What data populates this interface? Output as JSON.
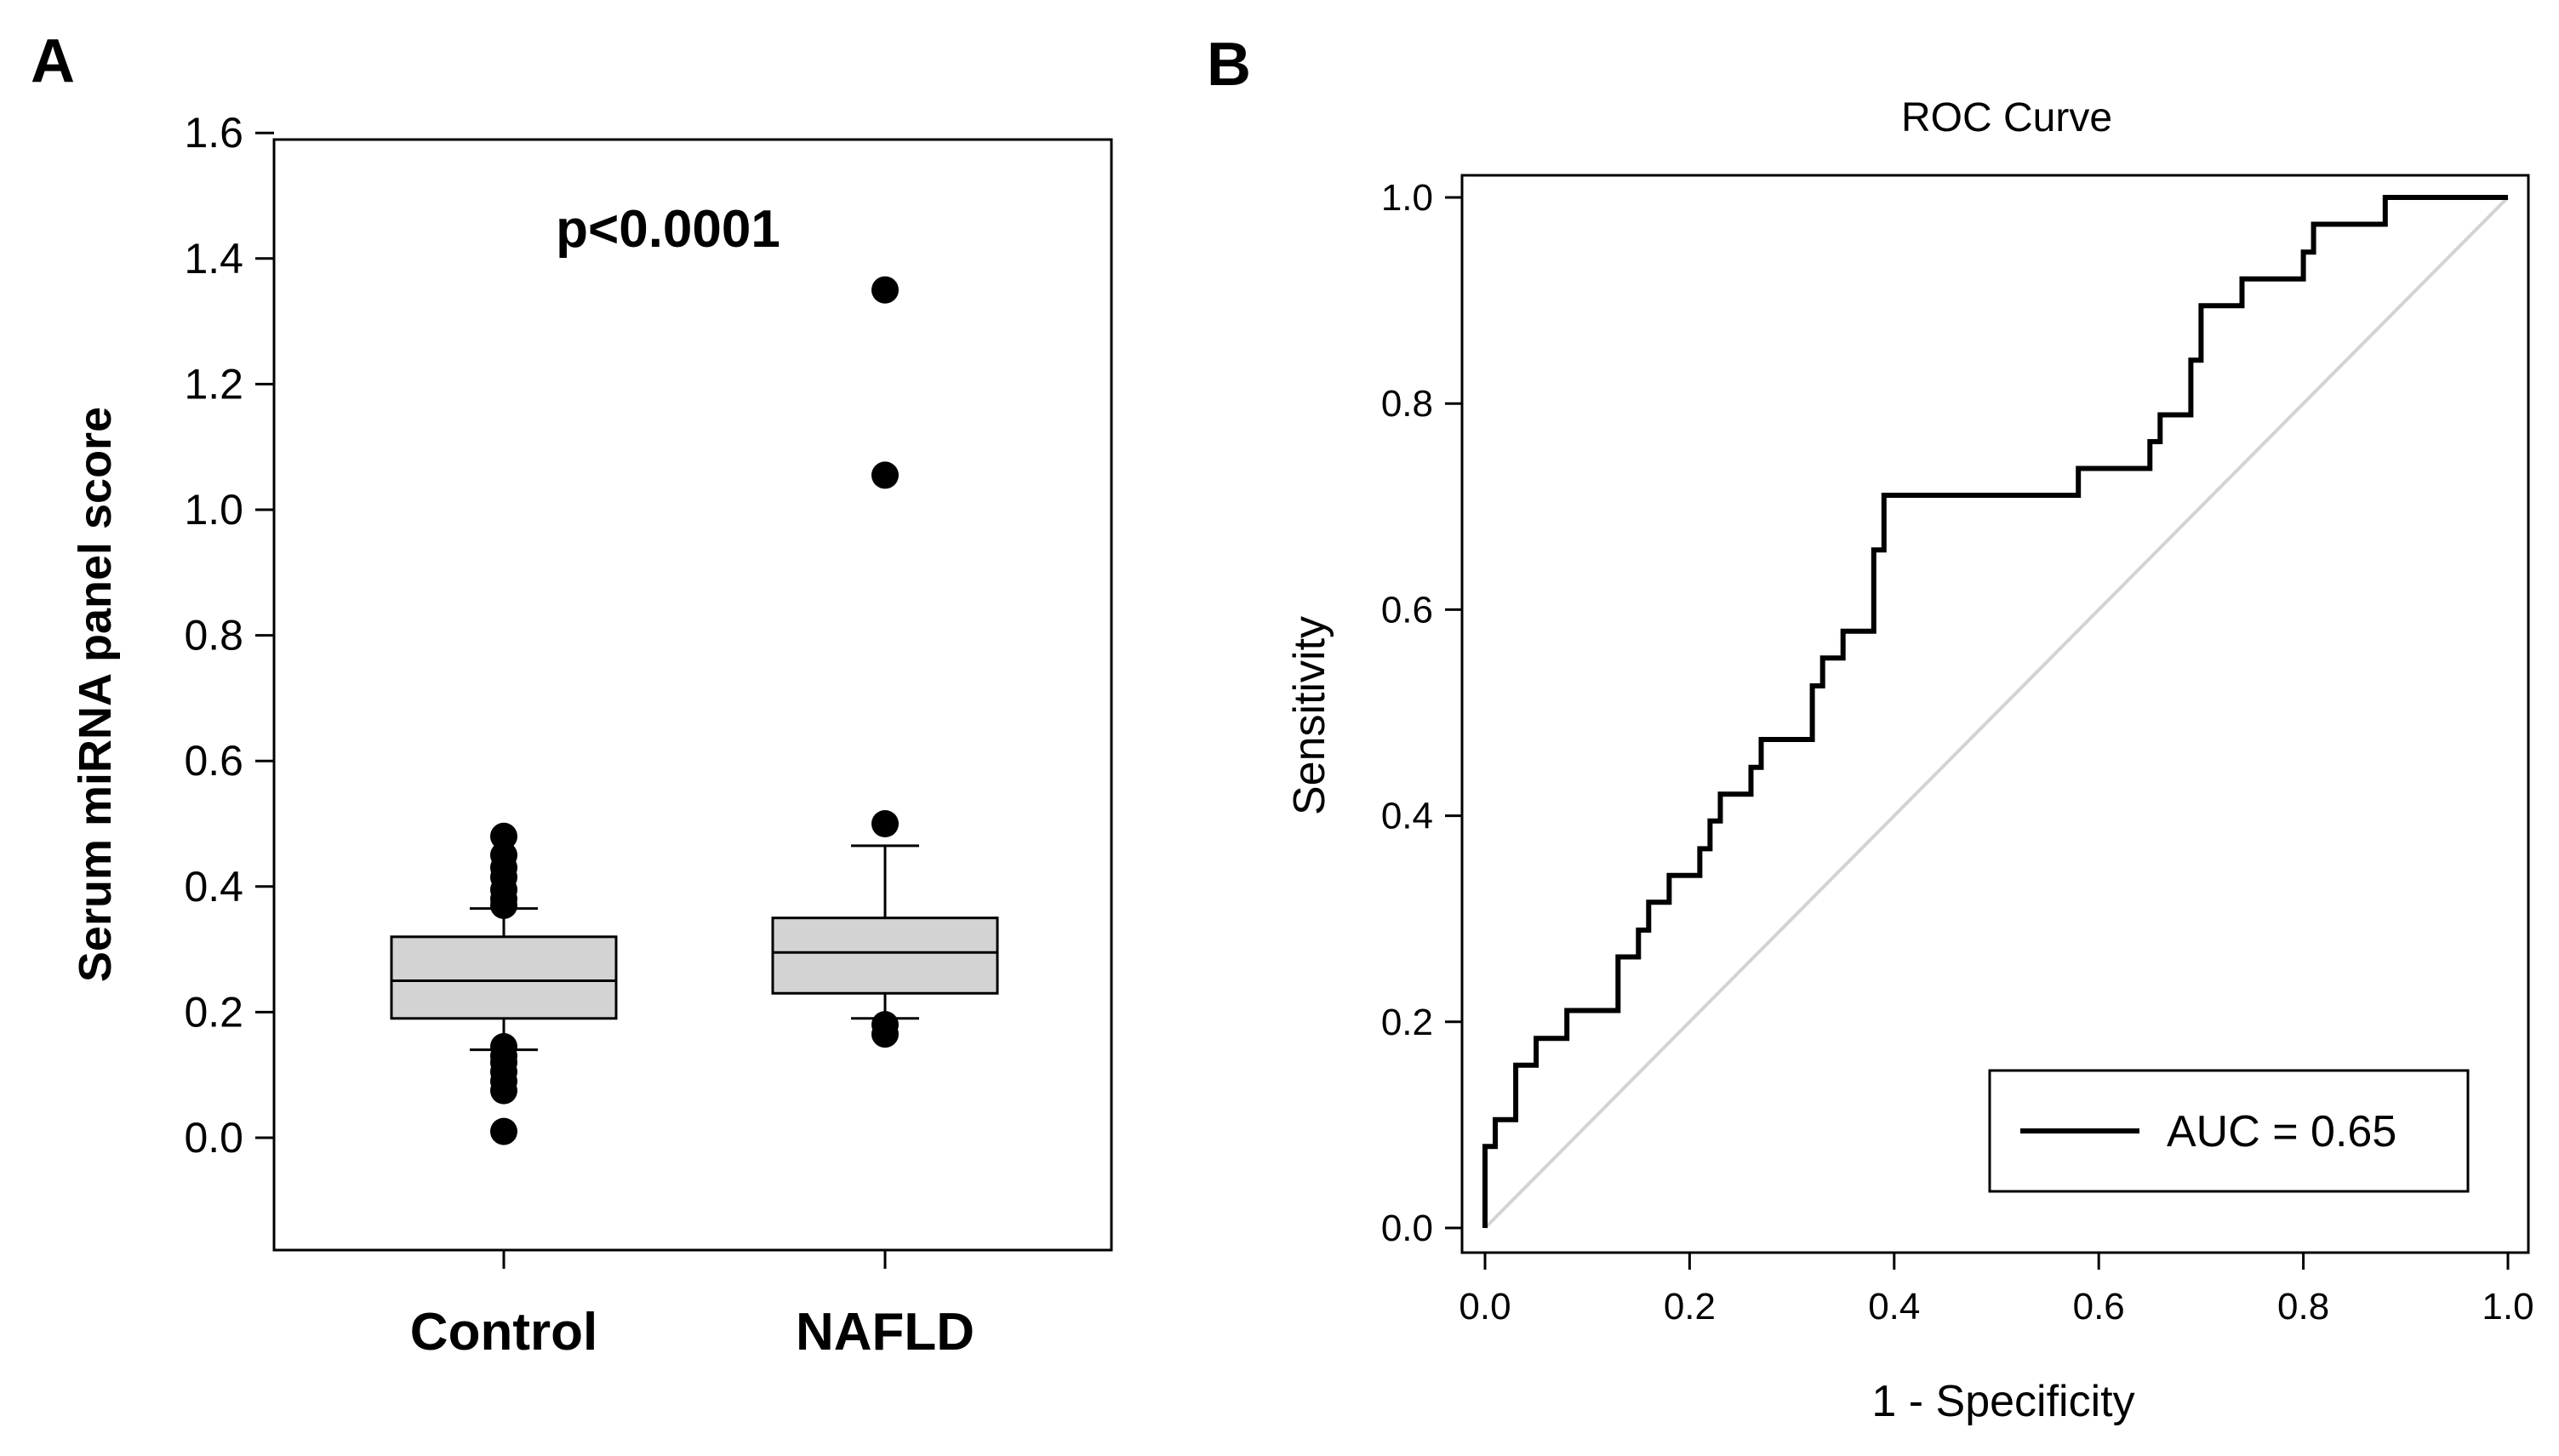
{
  "chart_data": [
    {
      "panel": "A",
      "type": "box",
      "title": "",
      "xlabel": "",
      "ylabel": "Serum miRNA panel score",
      "ylim": [
        -0.18,
        1.6
      ],
      "yticks": [
        "0.0",
        "0.2",
        "0.4",
        "0.6",
        "0.8",
        "1.0",
        "1.2",
        "1.4",
        "1.6"
      ],
      "annotation": "p<0.0001",
      "categories": [
        "Control",
        "NAFLD"
      ],
      "boxes": [
        {
          "name": "Control",
          "whisker_low": 0.14,
          "q1": 0.19,
          "median": 0.25,
          "q3": 0.32,
          "whisker_high": 0.365,
          "outliers": [
            0.01,
            0.075,
            0.09,
            0.105,
            0.12,
            0.13,
            0.145,
            0.37,
            0.38,
            0.395,
            0.415,
            0.43,
            0.45,
            0.48
          ]
        },
        {
          "name": "NAFLD",
          "whisker_low": 0.19,
          "q1": 0.23,
          "median": 0.295,
          "q3": 0.35,
          "whisker_high": 0.465,
          "outliers": [
            0.165,
            0.18,
            0.5,
            1.055,
            1.35
          ]
        }
      ],
      "colors": {
        "box_fill": "#d3d3d3",
        "marker": "#000000"
      }
    },
    {
      "panel": "B",
      "type": "line",
      "title": "ROC Curve",
      "xlabel": "1 - Specificity",
      "ylabel": "Sensitivity",
      "xlim": [
        0,
        1
      ],
      "ylim": [
        0,
        1
      ],
      "xticks": [
        "0.0",
        "0.2",
        "0.4",
        "0.6",
        "0.8",
        "1.0"
      ],
      "yticks": [
        "0.0",
        "0.2",
        "0.4",
        "0.6",
        "0.8",
        "1.0"
      ],
      "legend": {
        "label": "AUC = 0.65",
        "placement": "bottom-right"
      },
      "series": [
        {
          "name": "AUC = 0.65",
          "color": "#000000",
          "x": [
            0,
            0,
            0.01,
            0.01,
            0.03,
            0.03,
            0.05,
            0.05,
            0.08,
            0.08,
            0.13,
            0.13,
            0.15,
            0.15,
            0.16,
            0.16,
            0.18,
            0.18,
            0.21,
            0.21,
            0.22,
            0.22,
            0.23,
            0.23,
            0.26,
            0.26,
            0.27,
            0.27,
            0.32,
            0.32,
            0.33,
            0.33,
            0.35,
            0.35,
            0.38,
            0.38,
            0.39,
            0.39,
            0.58,
            0.58,
            0.65,
            0.65,
            0.66,
            0.66,
            0.69,
            0.69,
            0.7,
            0.7,
            0.72,
            0.72,
            0.74,
            0.74,
            0.8,
            0.8,
            0.81,
            0.81,
            0.82,
            0.82,
            0.88,
            0.88,
            1.0
          ],
          "y": [
            0,
            0.079,
            0.079,
            0.105,
            0.105,
            0.158,
            0.158,
            0.184,
            0.184,
            0.211,
            0.211,
            0.263,
            0.263,
            0.289,
            0.289,
            0.316,
            0.316,
            0.342,
            0.342,
            0.368,
            0.368,
            0.395,
            0.395,
            0.421,
            0.421,
            0.447,
            0.447,
            0.474,
            0.474,
            0.526,
            0.526,
            0.553,
            0.553,
            0.579,
            0.579,
            0.658,
            0.658,
            0.711,
            0.711,
            0.737,
            0.737,
            0.763,
            0.763,
            0.789,
            0.789,
            0.842,
            0.842,
            0.895,
            0.895,
            0.895,
            0.895,
            0.921,
            0.921,
            0.947,
            0.947,
            0.974,
            0.974,
            0.974,
            0.974,
            1.0,
            1.0
          ]
        },
        {
          "name": "reference",
          "color": "#d3d3d3",
          "x": [
            0,
            1
          ],
          "y": [
            0,
            1
          ]
        }
      ]
    }
  ]
}
